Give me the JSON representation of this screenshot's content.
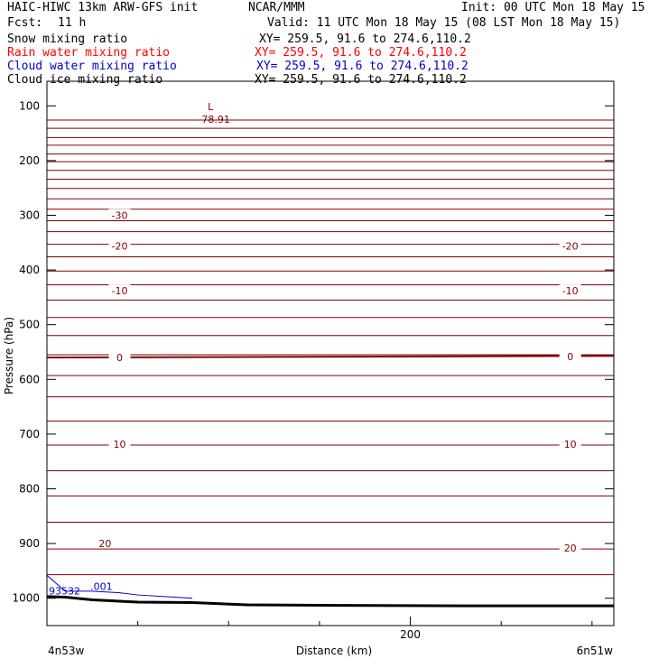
{
  "header": {
    "title": "HAIC-HIWC 13km ARW-GFS init",
    "org": "NCAR/MMM",
    "init": "Init: 00 UTC Mon 18 May 15",
    "fcst_label": "Fcst:",
    "fcst_value": "11 h",
    "valid": "Valid: 11 UTC Mon 18 May 15 (08 LST Mon 18 May 15)"
  },
  "fields": [
    {
      "name": "Snow mixing ratio",
      "xy": "XY= 259.5, 91.6 to 274.6,110.2",
      "color": "#000000"
    },
    {
      "name": "Rain water mixing ratio",
      "xy": "XY= 259.5, 91.6 to 274.6,110.2",
      "color": "#ff0000"
    },
    {
      "name": "Cloud water mixing ratio",
      "xy": "XY= 259.5, 91.6 to 274.6,110.2",
      "color": "#0000cc"
    },
    {
      "name": "Cloud ice mixing ratio",
      "xy": "XY= 259.5, 91.6 to 274.6,110.2",
      "color": "#000000"
    }
  ],
  "chart_data": {
    "type": "line",
    "xlabel": "Distance (km)",
    "ylabel": "Pressure (hPa)",
    "xlim": [
      0,
      312
    ],
    "ylim": [
      1050,
      55
    ],
    "x_ticks": [
      {
        "value": 200,
        "label": "200"
      }
    ],
    "y_ticks": [
      100,
      200,
      300,
      400,
      500,
      600,
      700,
      800,
      900,
      1000
    ],
    "x_endpoint_labels": {
      "left": "4n53w",
      "right": "6n51w"
    },
    "colors": {
      "temperature": "#800000",
      "cloud_water": "#0000cc",
      "terrain": "#000000"
    },
    "isotherm_pressures": [
      [
        0,
        126,
        312,
        126
      ],
      [
        0,
        141,
        312,
        141
      ],
      [
        0,
        158,
        312,
        158
      ],
      [
        0,
        172,
        312,
        172
      ],
      [
        0,
        188,
        312,
        188
      ],
      [
        0,
        202,
        312,
        202
      ],
      [
        0,
        218,
        312,
        218
      ],
      [
        0,
        234,
        312,
        234
      ],
      [
        0,
        251,
        312,
        251
      ],
      [
        0,
        270,
        312,
        270
      ],
      [
        0,
        289,
        312,
        289
      ],
      [
        0,
        310,
        312,
        310
      ],
      [
        0,
        330,
        312,
        330
      ],
      [
        0,
        353,
        312,
        353
      ],
      [
        0,
        376,
        312,
        376
      ],
      [
        0,
        402,
        312,
        402
      ],
      [
        0,
        427,
        312,
        427
      ],
      [
        0,
        455,
        312,
        455
      ],
      [
        0,
        487,
        312,
        487
      ],
      [
        0,
        520,
        312,
        520
      ],
      [
        0,
        555,
        312,
        555
      ],
      [
        0,
        593,
        312,
        593
      ],
      [
        0,
        632,
        312,
        632
      ],
      [
        0,
        676,
        312,
        676
      ],
      [
        0,
        720,
        312,
        720
      ],
      [
        0,
        767,
        312,
        767
      ],
      [
        0,
        813,
        312,
        813
      ],
      [
        0,
        861,
        312,
        861
      ],
      [
        0,
        910,
        312,
        910
      ],
      [
        0,
        957,
        312,
        957
      ]
    ],
    "contour_labels": [
      {
        "text": "-30",
        "x": 40,
        "p": 300
      },
      {
        "text": "-20",
        "x": 40,
        "p": 356
      },
      {
        "text": "-20",
        "x": 288,
        "p": 356
      },
      {
        "text": "-10",
        "x": 40,
        "p": 438
      },
      {
        "text": "-10",
        "x": 288,
        "p": 438
      },
      {
        "text": "0",
        "x": 40,
        "p": 560
      },
      {
        "text": "0",
        "x": 288,
        "p": 558
      },
      {
        "text": "10",
        "x": 40,
        "p": 718
      },
      {
        "text": "10",
        "x": 288,
        "p": 718
      },
      {
        "text": "20",
        "x": 32,
        "p": 900
      },
      {
        "text": "20",
        "x": 288,
        "p": 908
      }
    ],
    "low_label": {
      "symbol": "L",
      "value": "-78.91",
      "x": 90,
      "p": 108
    },
    "cloud_water": {
      "label": ".001",
      "label_x": 30,
      "label_p": 985,
      "value_label": "93532",
      "value_x": 0,
      "value_p": 993,
      "points": [
        [
          0,
          958
        ],
        [
          10,
          987
        ],
        [
          25,
          987
        ],
        [
          40,
          990
        ],
        [
          50,
          994
        ],
        [
          70,
          998
        ],
        [
          80,
          1000
        ]
      ]
    },
    "terrain": [
      [
        0,
        997
      ],
      [
        10,
        998
      ],
      [
        25,
        1003
      ],
      [
        50,
        1007
      ],
      [
        80,
        1008
      ],
      [
        110,
        1012
      ],
      [
        160,
        1013
      ],
      [
        230,
        1014
      ],
      [
        312,
        1014
      ]
    ]
  }
}
